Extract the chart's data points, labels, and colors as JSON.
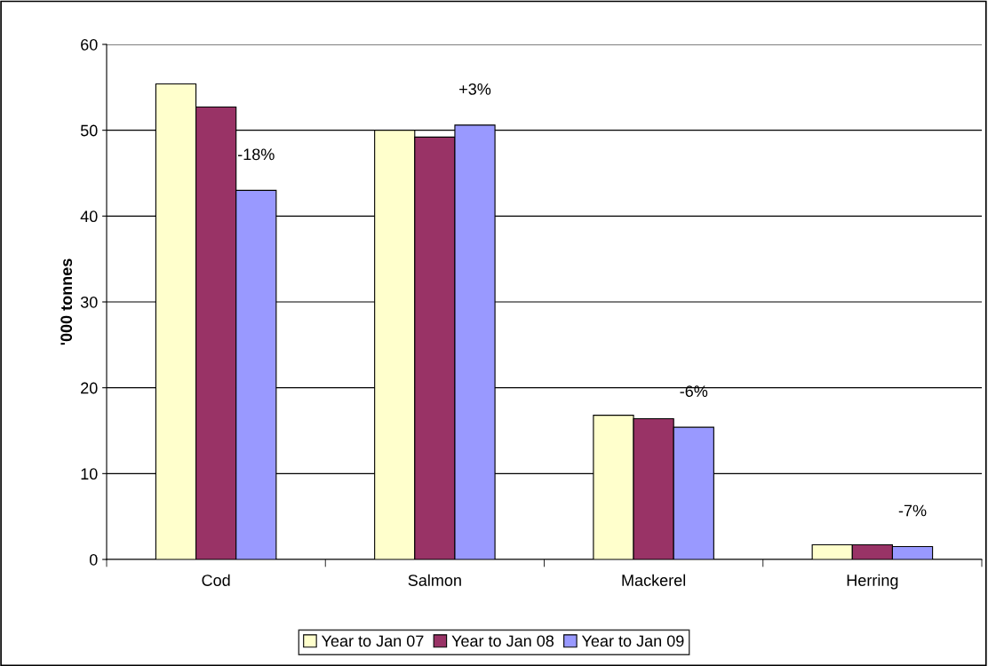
{
  "chart_data": {
    "type": "bar",
    "ylabel": "'000 tonnes",
    "categories": [
      "Cod",
      "Salmon",
      "Mackerel",
      "Herring"
    ],
    "series": [
      {
        "name": "Year to Jan 07",
        "color": "#ffffcc",
        "values": [
          55.4,
          50.0,
          16.8,
          1.7
        ]
      },
      {
        "name": "Year to Jan 08",
        "color": "#993366",
        "values": [
          52.7,
          49.2,
          16.4,
          1.7
        ]
      },
      {
        "name": "Year to Jan 09",
        "color": "#9999ff",
        "values": [
          43.0,
          50.6,
          15.4,
          1.5
        ]
      }
    ],
    "ylim": [
      0,
      60
    ],
    "yticks": [
      0,
      10,
      20,
      30,
      40,
      50,
      60
    ],
    "grid": "y",
    "legend": "bottom",
    "annotations": [
      "-18%",
      "+3%",
      "-6%",
      "-7%"
    ]
  }
}
